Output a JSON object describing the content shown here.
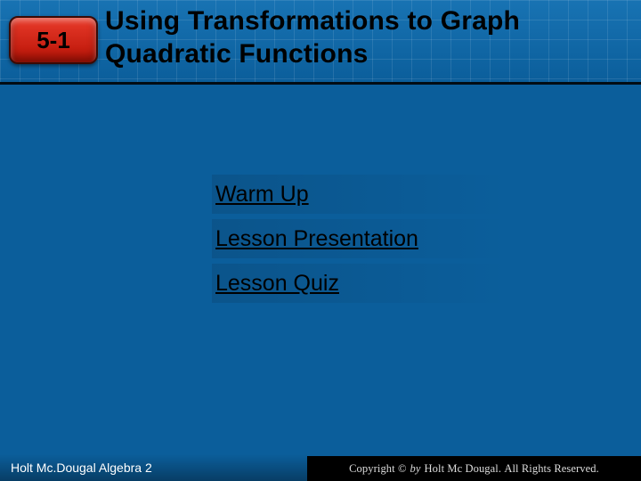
{
  "colors": {
    "slide_bg": "#0b5e9b",
    "badge_gradient_top": "#e83a2a",
    "badge_gradient_bottom": "#b81306",
    "footer_right_bg": "#000000",
    "text_black": "#000000",
    "text_white": "#ffffff"
  },
  "badge": {
    "label": "5-1"
  },
  "title": {
    "line1": "Using Transformations to Graph",
    "line2": "Quadratic Functions",
    "fontsize": 30
  },
  "links": {
    "items": [
      {
        "label": "Warm Up"
      },
      {
        "label": "Lesson Presentation"
      },
      {
        "label": "Lesson Quiz"
      }
    ],
    "fontsize": 25
  },
  "footer": {
    "left": "Holt Mc.Dougal Algebra 2",
    "right_prefix": "Copyright ©",
    "right_by": "by",
    "right_publisher": "Holt Mc Dougal.",
    "right_suffix": "All Rights Reserved."
  }
}
